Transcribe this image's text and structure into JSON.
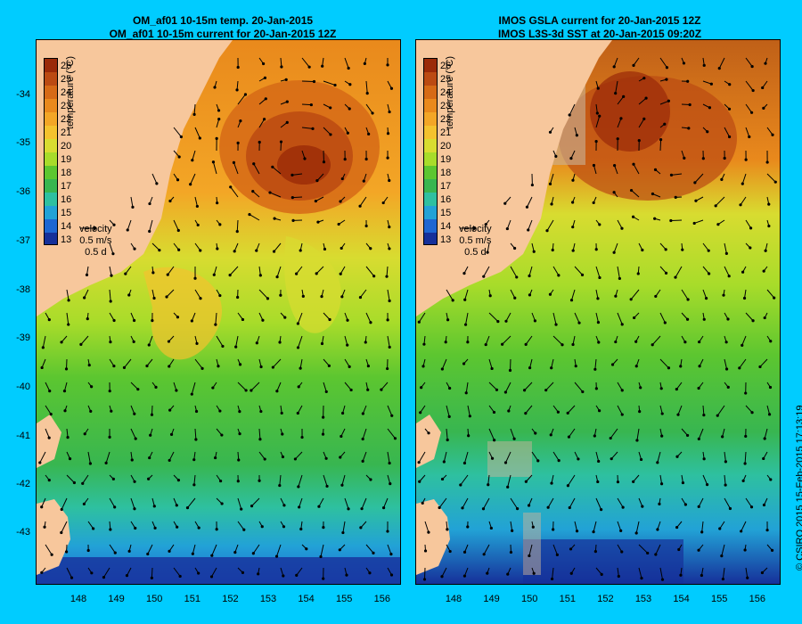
{
  "left_panel": {
    "title_line1": "OM_af01 10-15m temp. 20-Jan-2015",
    "title_line2": "OM_af01 10-15m current for 20-Jan-2015 12Z"
  },
  "right_panel": {
    "title_line1": "IMOS GSLA current for 20-Jan-2015 12Z",
    "title_line2": "IMOS L3S-3d SST at 20-Jan-2015 09:20Z"
  },
  "colorbar": {
    "ticks": [
      "26",
      "25",
      "24",
      "23",
      "22",
      "21",
      "20",
      "19",
      "18",
      "17",
      "16",
      "15",
      "14",
      "13"
    ],
    "colors": [
      "#9a2a08",
      "#bb4a12",
      "#d66a16",
      "#e9891c",
      "#f3a626",
      "#f4c22e",
      "#d8dc30",
      "#a8dc2a",
      "#5cc630",
      "#38b650",
      "#2ec0a0",
      "#22a2d6",
      "#1e66d2",
      "#16309a"
    ],
    "label": "temperature (°C)"
  },
  "velocity_legend": {
    "title": "velocity",
    "speed": "0.5 m/s",
    "duration": "0.5 d"
  },
  "axes": {
    "y_ticks": [
      "-34",
      "-35",
      "-36",
      "-37",
      "-38",
      "-39",
      "-40",
      "-41",
      "-42",
      "-43"
    ],
    "x_ticks": [
      "148",
      "149",
      "150",
      "151",
      "152",
      "153",
      "154",
      "155",
      "156"
    ]
  },
  "copyright": "© CSIRO 2015   15-Feb-2015 17:13:19",
  "colors": {
    "background": "#00ccff",
    "land": "#f7c79c",
    "arrow": "#000000"
  }
}
